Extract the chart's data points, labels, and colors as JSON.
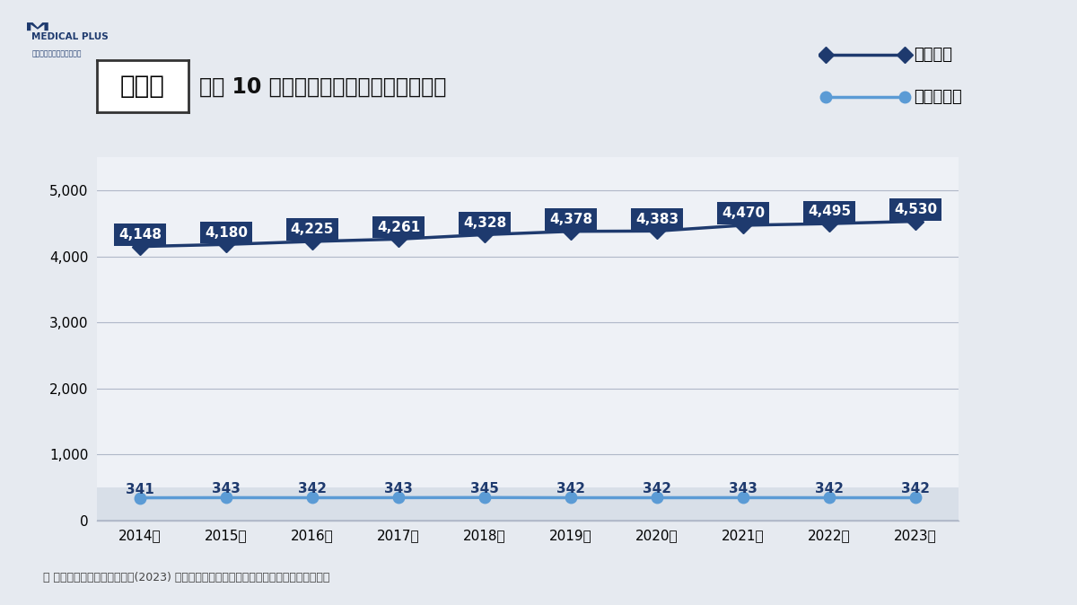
{
  "years": [
    2014,
    2015,
    2016,
    2017,
    2018,
    2019,
    2020,
    2021,
    2022,
    2023
  ],
  "year_labels": [
    "2014年",
    "2015年",
    "2016年",
    "2017年",
    "2018年",
    "2019年",
    "2020年",
    "2021年",
    "2022年",
    "2023年"
  ],
  "clinic_values": [
    4148,
    4180,
    4225,
    4261,
    4328,
    4378,
    4383,
    4470,
    4495,
    4530
  ],
  "hospital_values": [
    341,
    343,
    342,
    343,
    345,
    342,
    342,
    343,
    342,
    342
  ],
  "clinic_color": "#1e3a6e",
  "hospital_color": "#5b9bd5",
  "clinic_label": "診療所数",
  "hospital_label": "病　院　数",
  "title_prefecture": "埼玉県",
  "title_main": "過去 10 年間の診療所数と病院数の推移",
  "ylim": [
    0,
    5500
  ],
  "yticks": [
    0,
    1000,
    2000,
    3000,
    4000,
    5000
  ],
  "bg_color": "#e6eaf0",
  "plot_bg_color": "#eef1f6",
  "annotation_bg_clinic": "#1e3a6e",
  "annotation_text_clinic": "#ffffff",
  "annotation_text_hospital": "#1e3a6e",
  "source_text": "＊ 出典：厚生労働省「令和５(2023) 年医療施設（静態・動態）調査・病院報告の概況」",
  "grid_color": "#b0b8c8",
  "bottom_band_color": "#d8dfe8"
}
